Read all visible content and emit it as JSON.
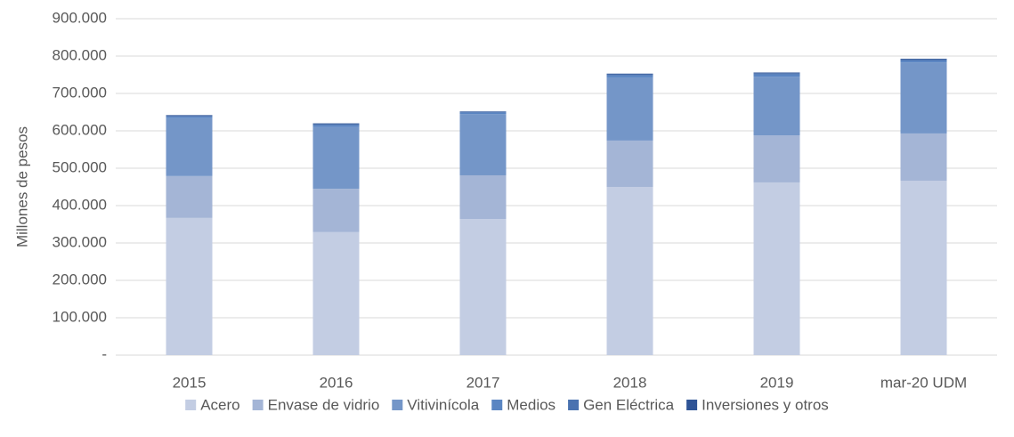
{
  "chart_data": {
    "type": "stacked_bar",
    "y_axis_label": "Millones de pesos",
    "categories": [
      "2015",
      "2016",
      "2017",
      "2018",
      "2019",
      "mar-20 UDM"
    ],
    "series": [
      {
        "name": "Acero",
        "color": "#c3cde3",
        "values": [
          367000,
          329000,
          364000,
          450000,
          462000,
          466000
        ]
      },
      {
        "name": "Envase de vidrio",
        "color": "#a4b5d6",
        "values": [
          112000,
          116000,
          117000,
          124000,
          126000,
          127000
        ]
      },
      {
        "name": "Vitivinícola",
        "color": "#7496c8",
        "values": [
          155000,
          165000,
          164000,
          169000,
          157000,
          190000
        ]
      },
      {
        "name": "Medios",
        "color": "#5a85c2",
        "values": [
          4000,
          5000,
          4000,
          5000,
          6000,
          5000
        ]
      },
      {
        "name": "Gen Eléctrica",
        "color": "#4a72b0",
        "values": [
          2000,
          3000,
          2000,
          3000,
          3000,
          3000
        ]
      },
      {
        "name": "Inversiones y otros",
        "color": "#2f5496",
        "values": [
          2000,
          2000,
          1000,
          2000,
          2000,
          2000
        ]
      }
    ],
    "ylim": [
      0,
      900000
    ],
    "yticks": [
      {
        "value": 0,
        "label": "-"
      },
      {
        "value": 100000,
        "label": "100.000"
      },
      {
        "value": 200000,
        "label": "200.000"
      },
      {
        "value": 300000,
        "label": "300.000"
      },
      {
        "value": 400000,
        "label": "400.000"
      },
      {
        "value": 500000,
        "label": "500.000"
      },
      {
        "value": 600000,
        "label": "600.000"
      },
      {
        "value": 700000,
        "label": "700.000"
      },
      {
        "value": 800000,
        "label": "800.000"
      },
      {
        "value": 900000,
        "label": "900.000"
      }
    ],
    "grid": true,
    "legend": "bottom"
  }
}
